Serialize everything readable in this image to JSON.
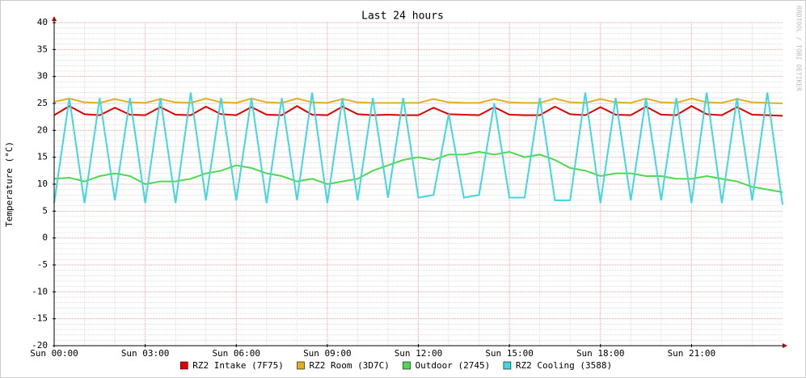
{
  "chart_data": {
    "type": "line",
    "title": "Last 24 hours",
    "y_label": "Temperature (°C)",
    "watermark": "RRDTOOL / TOBI OETIKER",
    "x": [
      0,
      0.5,
      1,
      1.5,
      2,
      2.5,
      3,
      3.5,
      4,
      4.5,
      5,
      5.5,
      6,
      6.5,
      7,
      7.5,
      8,
      8.5,
      9,
      9.5,
      10,
      10.5,
      11,
      11.5,
      12,
      12.5,
      13,
      13.5,
      14,
      14.5,
      15,
      15.5,
      16,
      16.5,
      17,
      17.5,
      18,
      18.5,
      19,
      19.5,
      20,
      20.5,
      21,
      21.5,
      22,
      22.5,
      23,
      23.5,
      24
    ],
    "xlim": [
      0,
      24
    ],
    "xticks": [
      {
        "value": 0,
        "label": "Sun 00:00"
      },
      {
        "value": 3,
        "label": "Sun 03:00"
      },
      {
        "value": 6,
        "label": "Sun 06:00"
      },
      {
        "value": 9,
        "label": "Sun 09:00"
      },
      {
        "value": 12,
        "label": "Sun 12:00"
      },
      {
        "value": 15,
        "label": "Sun 15:00"
      },
      {
        "value": 18,
        "label": "Sun 18:00"
      },
      {
        "value": 21,
        "label": "Sun 21:00"
      }
    ],
    "ylim": [
      -20,
      40
    ],
    "yticks": [
      -20,
      -15,
      -10,
      -5,
      0,
      5,
      10,
      15,
      20,
      25,
      30,
      35,
      40
    ],
    "grid": true,
    "series": [
      {
        "name": "RZ2 Intake (7F75)",
        "color": "#e00000",
        "values": [
          22.8,
          24.5,
          23,
          22.8,
          24.2,
          22.9,
          22.8,
          24.3,
          22.9,
          22.8,
          24.4,
          23,
          22.8,
          24.3,
          22.9,
          22.8,
          24.5,
          22.9,
          22.8,
          24.4,
          23,
          22.8,
          22.9,
          22.8,
          22.8,
          24.2,
          23,
          22.9,
          22.8,
          24.3,
          22.9,
          22.8,
          22.8,
          24.4,
          23,
          22.8,
          24.3,
          22.9,
          22.8,
          24.4,
          22.9,
          22.8,
          24.5,
          23,
          22.8,
          24.3,
          22.9,
          22.8,
          22.7
        ]
      },
      {
        "name": "RZ2 Room (3D7C)",
        "color": "#e0b020",
        "values": [
          25.3,
          25.9,
          25.2,
          25.1,
          25.8,
          25.2,
          25.1,
          25.8,
          25.2,
          25.1,
          25.9,
          25.2,
          25.1,
          25.9,
          25.2,
          25.1,
          25.9,
          25.2,
          25.1,
          25.8,
          25.2,
          25.1,
          25.1,
          25.1,
          25.1,
          25.8,
          25.2,
          25.1,
          25.1,
          25.8,
          25.2,
          25.1,
          25.1,
          25.9,
          25.2,
          25.1,
          25.8,
          25.2,
          25.1,
          25.9,
          25.2,
          25.1,
          25.9,
          25.2,
          25.1,
          25.8,
          25.2,
          25.1,
          25.0
        ]
      },
      {
        "name": "Outdoor (2745)",
        "color": "#50d850",
        "values": [
          11,
          11.2,
          10.5,
          11.5,
          12,
          11.5,
          10,
          10.5,
          10.5,
          11,
          12,
          12.5,
          13.5,
          13,
          12,
          11.5,
          10.5,
          11,
          10,
          10.5,
          11,
          12.5,
          13.5,
          14.5,
          15,
          14.5,
          15.5,
          15.5,
          16,
          15.5,
          16,
          15,
          15.5,
          14.5,
          13,
          12.5,
          11.5,
          12,
          12,
          11.5,
          11.5,
          11,
          11,
          11.5,
          11,
          10.5,
          9.5,
          9,
          8.5
        ]
      },
      {
        "name": "RZ2 Cooling (3588)",
        "color": "#40d8e0",
        "values": [
          6.5,
          26,
          6.5,
          26,
          7,
          26,
          6.5,
          26,
          6.5,
          27,
          7,
          26,
          7,
          26,
          6.5,
          26,
          7,
          27,
          6.5,
          26,
          7,
          26,
          7.5,
          26,
          7.5,
          8,
          23,
          7.5,
          8,
          25,
          7.5,
          7.5,
          26,
          7,
          7,
          27,
          6.5,
          26,
          7,
          26,
          7,
          26,
          6.5,
          27,
          6.5,
          26,
          7,
          27,
          6.2
        ]
      }
    ]
  }
}
